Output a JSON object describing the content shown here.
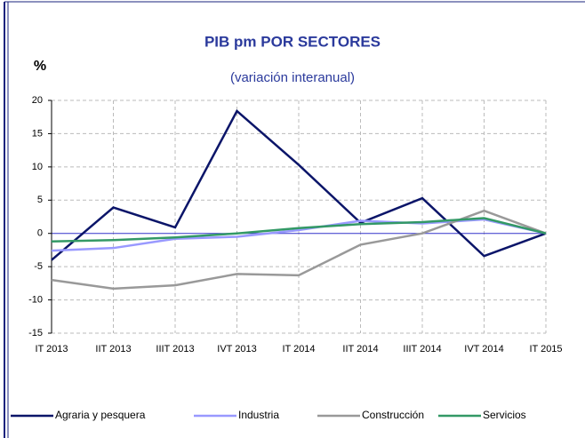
{
  "chart_data": {
    "type": "line",
    "title": "PIB pm POR SECTORES",
    "subtitle": "(variación interanual)",
    "y_label": "%",
    "categories": [
      "IT 2013",
      "IIT 2013",
      "IIIT 2013",
      "IVT 2013",
      "IT 2014",
      "IIT 2014",
      "IIIT 2014",
      "IVT 2014",
      "IT 2015"
    ],
    "series": [
      {
        "name": "Agraria y pesquera",
        "color": "#0b1569",
        "values": [
          -4,
          3.9,
          0.9,
          18.4,
          10.3,
          1.6,
          5.3,
          -3.4,
          0
        ]
      },
      {
        "name": "Industria",
        "color": "#9999ff",
        "values": [
          -2.6,
          -2.2,
          -0.8,
          -0.5,
          0.5,
          1.9,
          1.5,
          2.1,
          0
        ]
      },
      {
        "name": "Construcción",
        "color": "#999999",
        "values": [
          -7,
          -8.3,
          -7.8,
          -6.1,
          -6.3,
          -1.7,
          0,
          3.4,
          0
        ]
      },
      {
        "name": "Servicios",
        "color": "#339966",
        "values": [
          -1.2,
          -1,
          -0.6,
          0,
          0.8,
          1.4,
          1.7,
          2.3,
          0
        ]
      }
    ],
    "ylim": [
      -15,
      20
    ],
    "yticks": [
      -15,
      -10,
      -5,
      0,
      5,
      10,
      15,
      20
    ],
    "grid": true,
    "legend": "bottom"
  }
}
